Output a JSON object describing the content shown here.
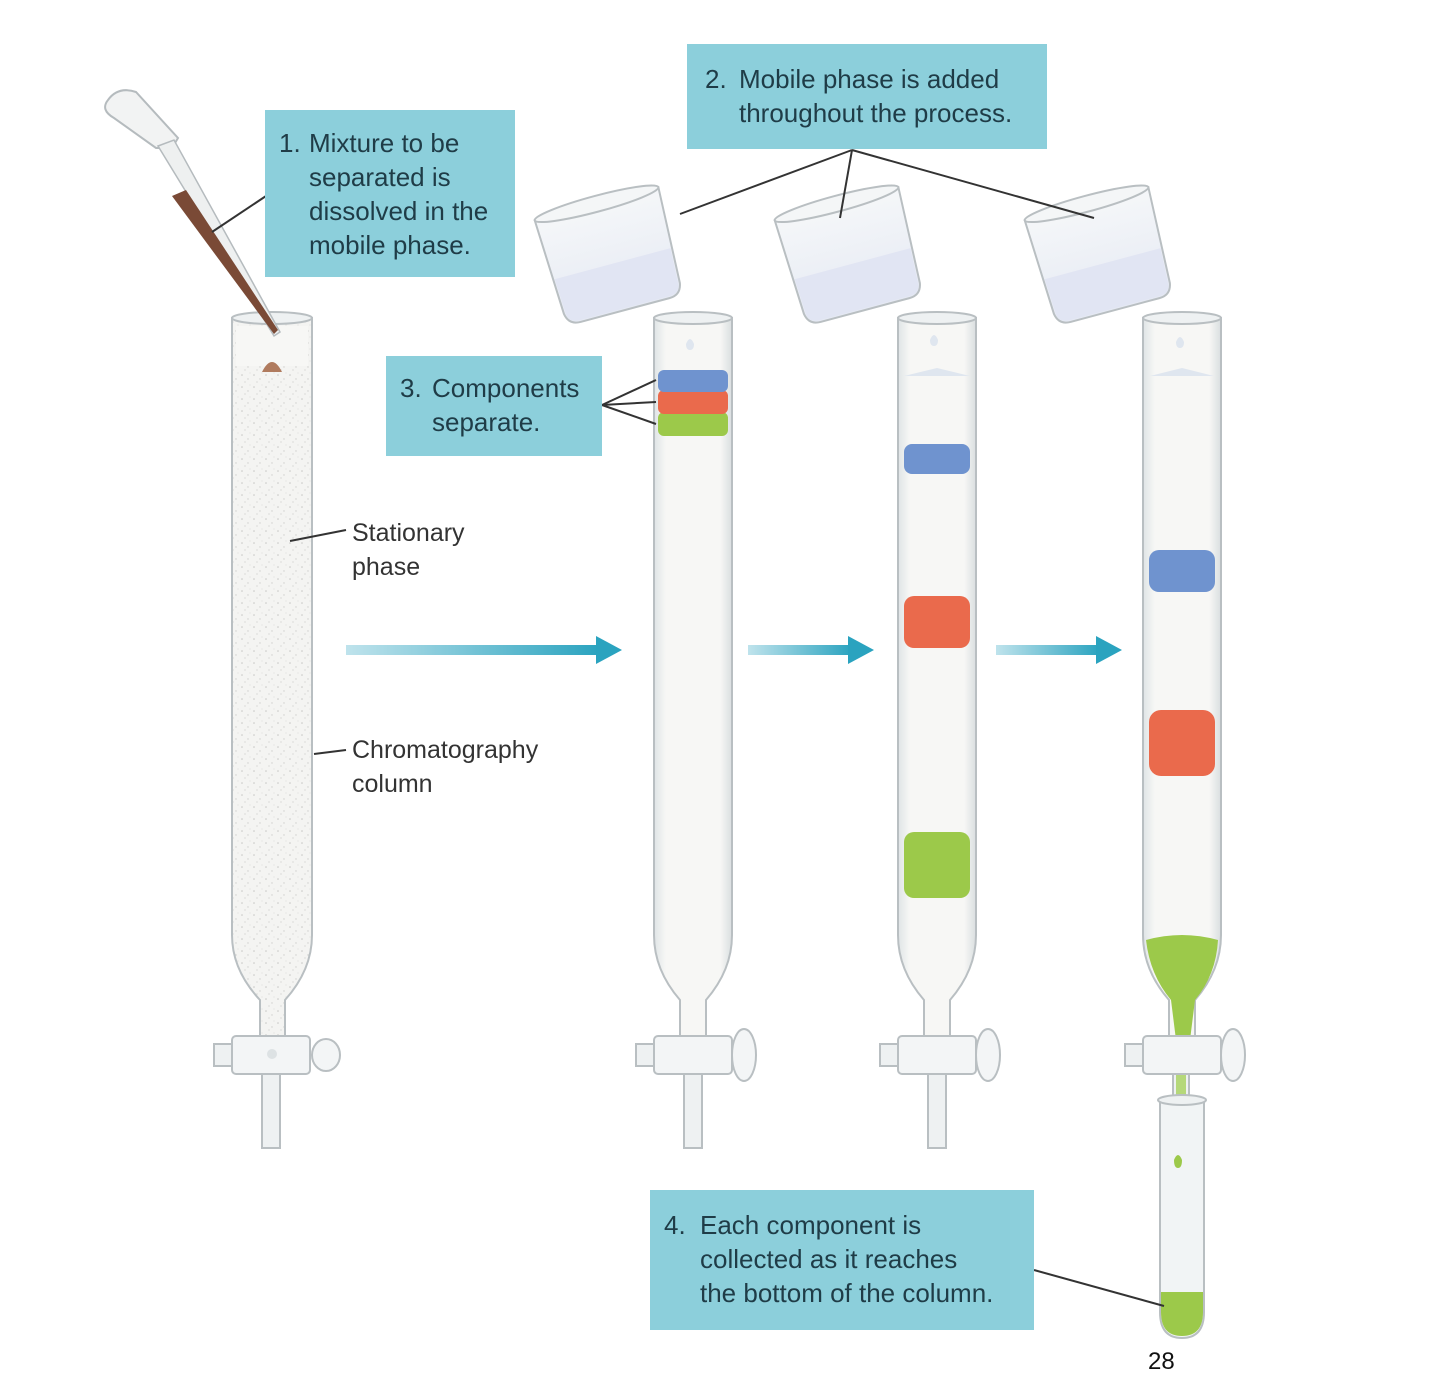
{
  "callouts": {
    "step1": {
      "number": "1.",
      "text": "Mixture to be\nseparated is\ndissolved in the\nmobile phase."
    },
    "step2": {
      "number": "2.",
      "text": "Mobile phase is added\nthroughout the process."
    },
    "step3": {
      "number": "3.",
      "text": "Components\nseparate."
    },
    "step4": {
      "number": "4.",
      "text": "Each component is\ncollected as it reaches\nthe bottom of the column."
    }
  },
  "labels": {
    "stationary_phase": "Stationary\nphase",
    "column": "Chromatography\ncolumn"
  },
  "page_number": "28",
  "colors": {
    "callout_bg": "#8ccfdb",
    "arrow": "#2aa3bf",
    "band_blue": "#6f93cf",
    "band_red": "#ea6a4c",
    "band_green": "#9cc94a",
    "sample_brown": "#7a4a36"
  }
}
